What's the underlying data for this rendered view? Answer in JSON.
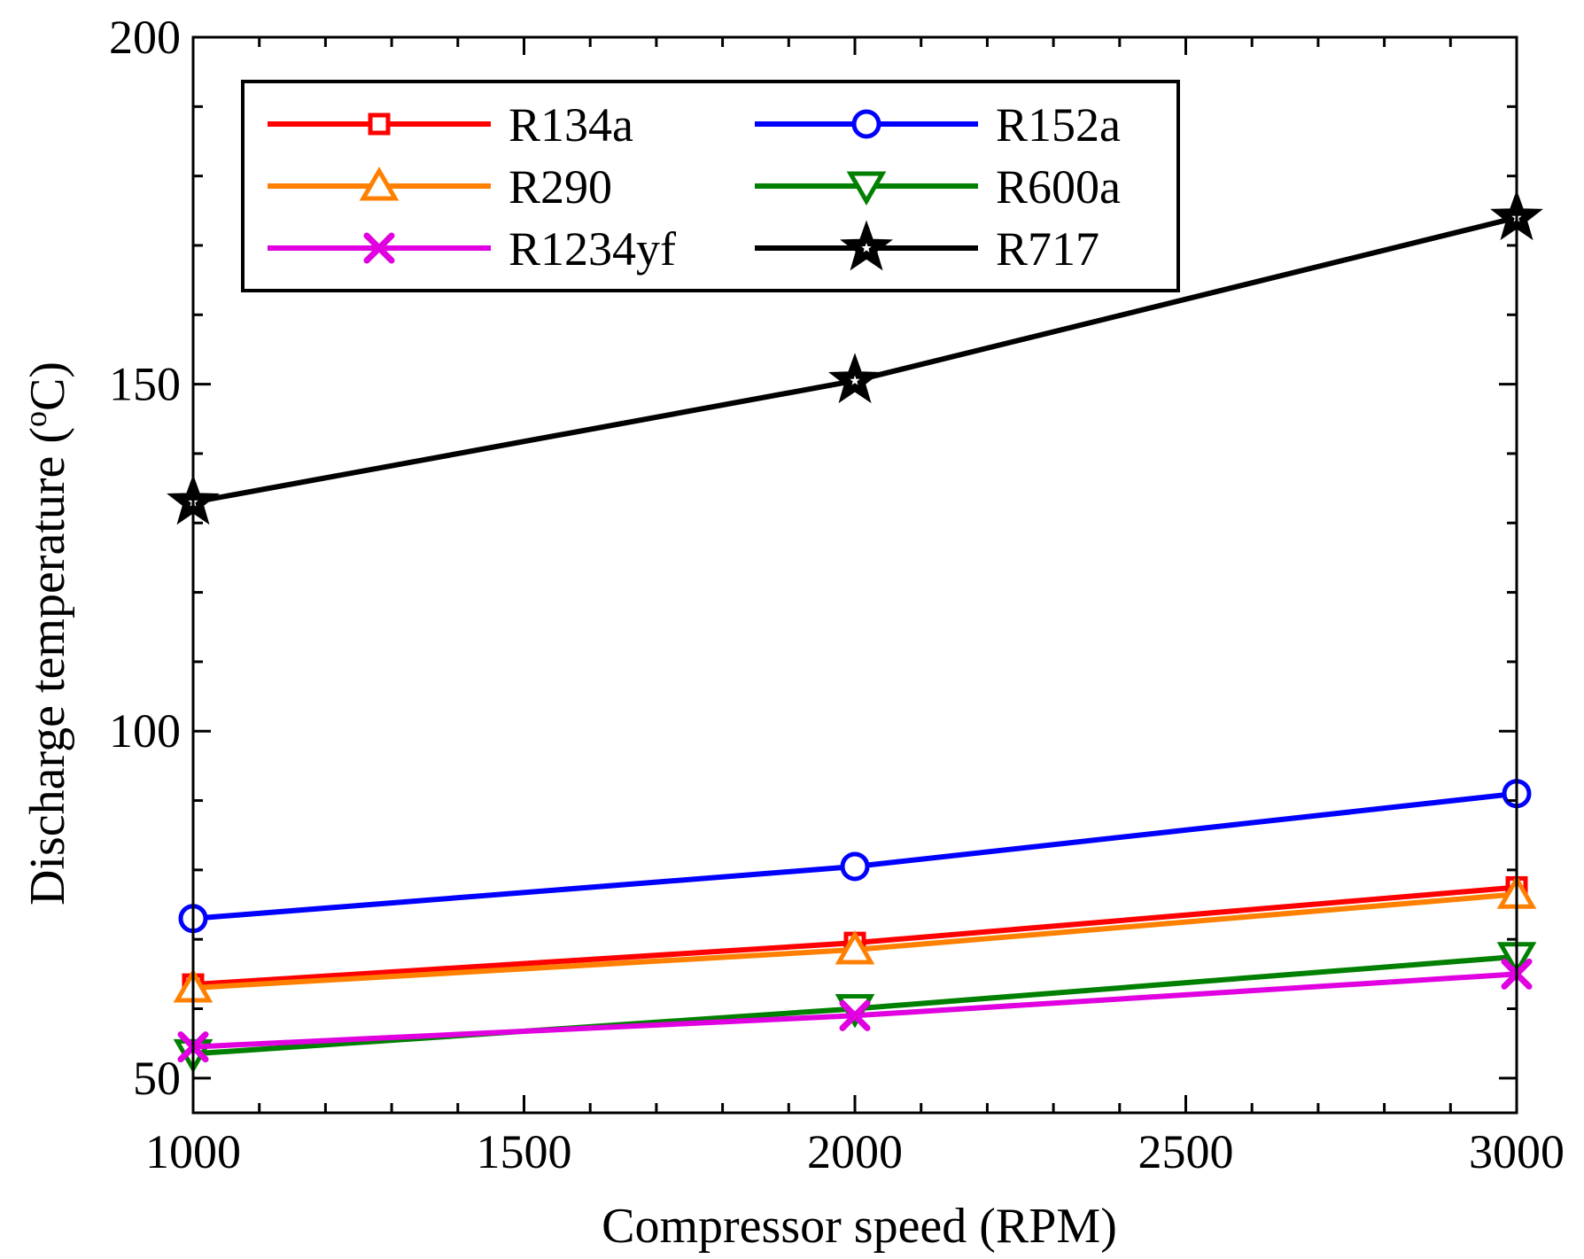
{
  "chart_data": {
    "type": "line",
    "title": "",
    "xlabel": "Compressor speed (RPM)",
    "ylabel_main": "Discharge temperature (",
    "ylabel_sup": "o",
    "ylabel_end": "C)",
    "x": [
      1000,
      2000,
      3000
    ],
    "xlim": [
      1000,
      3000
    ],
    "ylim": [
      45,
      200
    ],
    "xticks": [
      1000,
      1500,
      2000,
      2500,
      3000
    ],
    "xtick_labels": [
      "1000",
      "1500",
      "2000",
      "2500",
      "3000"
    ],
    "yticks": [
      50,
      100,
      150,
      200
    ],
    "ytick_labels": [
      "50",
      "100",
      "150",
      "200"
    ],
    "grid": false,
    "legend_position": "top-left",
    "series": [
      {
        "name": "R134a",
        "values": [
          63.5,
          69.5,
          77.5
        ],
        "color": "#ff0000",
        "marker": "square"
      },
      {
        "name": "R152a",
        "values": [
          73.0,
          80.5,
          91.0
        ],
        "color": "#0000ff",
        "marker": "circle"
      },
      {
        "name": "R290",
        "values": [
          63.0,
          68.5,
          76.5
        ],
        "color": "#ff8000",
        "marker": "triangle-up"
      },
      {
        "name": "R600a",
        "values": [
          53.5,
          60.0,
          67.5
        ],
        "color": "#008000",
        "marker": "triangle-down"
      },
      {
        "name": "R1234yf",
        "values": [
          54.5,
          59.0,
          65.0
        ],
        "color": "#e000e0",
        "marker": "x"
      },
      {
        "name": "R717",
        "values": [
          133.0,
          150.5,
          174.0
        ],
        "color": "#000000",
        "marker": "star"
      }
    ]
  }
}
